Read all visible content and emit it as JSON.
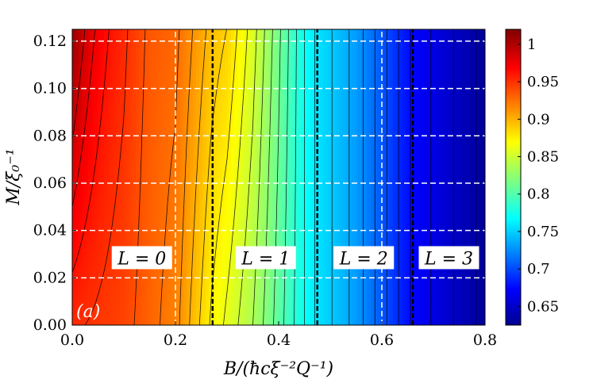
{
  "chart_data": {
    "type": "heatmap",
    "panel_label": "(a)",
    "xlabel": "B/(ħcξ⁻²Q⁻¹)",
    "ylabel": "M/ξ₀⁻¹",
    "xlim": [
      0.0,
      0.8
    ],
    "ylim": [
      0.0,
      0.125
    ],
    "x_ticks": [
      "0.0",
      "0.2",
      "0.4",
      "0.6",
      "0.8"
    ],
    "y_ticks": [
      "0.00",
      "0.02",
      "0.04",
      "0.06",
      "0.08",
      "0.10",
      "0.12"
    ],
    "colorbar": {
      "range": [
        0.625,
        1.02
      ],
      "ticks": [
        "0.65",
        "0.7",
        "0.75",
        "0.8",
        "0.85",
        "0.9",
        "0.95",
        "1"
      ],
      "colormap": "jet"
    },
    "transitions": [
      {
        "x_bottom": 0.272,
        "x_top": 0.272
      },
      {
        "x_bottom": 0.475,
        "x_top": 0.475
      },
      {
        "x_bottom": 0.66,
        "x_top": 0.66
      }
    ],
    "secondary_transitions": [
      {
        "x_bottom": 0.2,
        "x_top": 0.2
      },
      {
        "x_bottom": 0.6,
        "x_top": 0.6
      }
    ],
    "regions": [
      {
        "label": "L = 0",
        "x": 0.135,
        "y": 0.028
      },
      {
        "label": "L = 1",
        "x": 0.375,
        "y": 0.028
      },
      {
        "label": "L = 2",
        "x": 0.565,
        "y": 0.028
      },
      {
        "label": "L = 3",
        "x": 0.73,
        "y": 0.028
      }
    ],
    "value_profile": {
      "description": "value vs B at M=0",
      "B": [
        0.0,
        0.1,
        0.2,
        0.27,
        0.35,
        0.47,
        0.55,
        0.66,
        0.8
      ],
      "value": [
        0.955,
        0.945,
        0.92,
        0.875,
        0.84,
        0.765,
        0.735,
        0.675,
        0.635
      ]
    },
    "grid": true
  }
}
